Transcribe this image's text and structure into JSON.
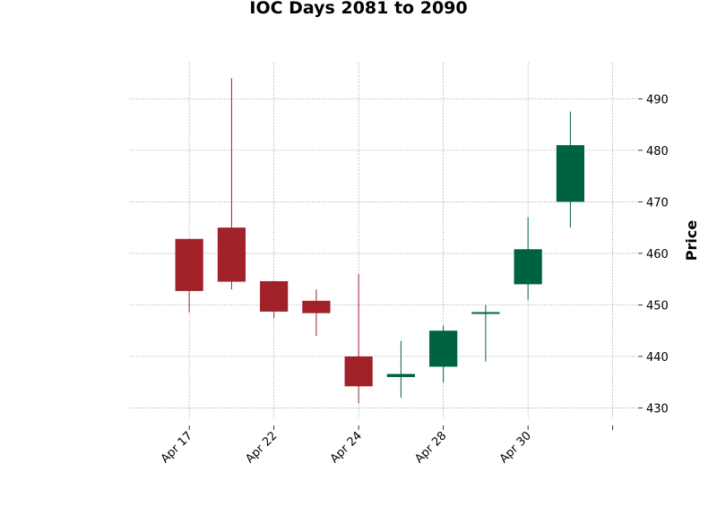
{
  "chart_data": {
    "type": "candlestick",
    "title": "IOC Days 2081 to 2090",
    "ylabel": "Price",
    "xlabel": "",
    "ylim": [
      428,
      497
    ],
    "yticks": [
      430,
      440,
      450,
      460,
      470,
      480,
      490
    ],
    "xtick_labels": [
      "Apr 17",
      "Apr 22",
      "Apr 24",
      "Apr 28",
      "Apr 30",
      ""
    ],
    "xtick_positions": [
      0,
      2,
      4,
      6,
      8,
      10
    ],
    "xlim": [
      -1.4,
      10.6
    ],
    "grid": true,
    "colors": {
      "up": "#006340",
      "down": "#a02128",
      "grid": "#b0b0b0"
    },
    "candles": [
      {
        "open": 462.8,
        "high": 462.8,
        "low": 448.5,
        "close": 452.7
      },
      {
        "open": 465.0,
        "high": 494.0,
        "low": 453.0,
        "close": 454.5
      },
      {
        "open": 454.6,
        "high": 454.6,
        "low": 447.4,
        "close": 448.7
      },
      {
        "open": 450.8,
        "high": 453.0,
        "low": 444.0,
        "close": 448.4
      },
      {
        "open": 440.0,
        "high": 456.0,
        "low": 430.9,
        "close": 434.2
      },
      {
        "open": 436.0,
        "high": 443.0,
        "low": 432.0,
        "close": 436.6
      },
      {
        "open": 438.0,
        "high": 446.0,
        "low": 435.0,
        "close": 445.0
      },
      {
        "open": 448.3,
        "high": 450.0,
        "low": 439.0,
        "close": 448.6
      },
      {
        "open": 454.0,
        "high": 467.0,
        "low": 451.0,
        "close": 460.8
      },
      {
        "open": 470.0,
        "high": 487.5,
        "low": 465.0,
        "close": 481.0
      }
    ]
  }
}
